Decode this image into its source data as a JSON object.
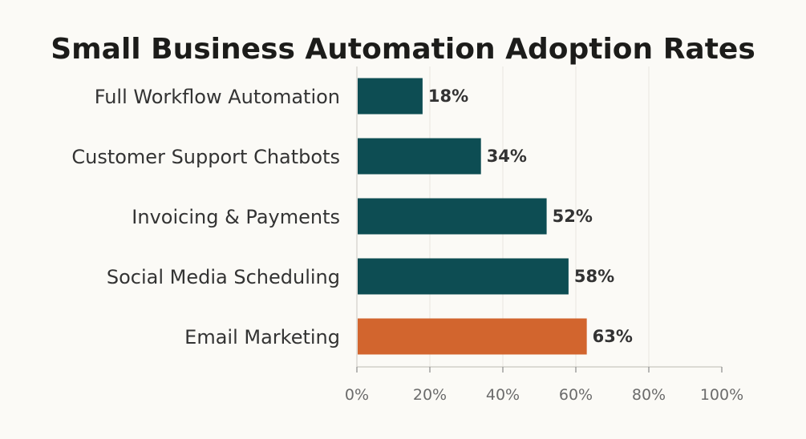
{
  "chart_data": {
    "type": "bar",
    "orientation": "horizontal",
    "title": "Small Business Automation Adoption Rates",
    "xlabel": "",
    "ylabel": "",
    "categories": [
      "Full Workflow Automation",
      "Customer Support Chatbots",
      "Invoicing & Payments",
      "Social Media Scheduling",
      "Email Marketing"
    ],
    "values": [
      18,
      34,
      52,
      58,
      63
    ],
    "value_labels": [
      "18%",
      "34%",
      "52%",
      "58%",
      "63%"
    ],
    "xlim": [
      0,
      100
    ],
    "x_ticks": [
      0,
      20,
      40,
      60,
      80,
      100
    ],
    "x_tick_labels": [
      "0%",
      "20%",
      "40%",
      "60%",
      "80%",
      "100%"
    ],
    "grid": true,
    "legend": "none",
    "colors": {
      "default_bar": "#0d4d53",
      "highlight_bar": "#d2652e",
      "highlight_category": "Email Marketing",
      "background": "#fbfaf6",
      "grid": "#e8e6e0",
      "axis": "#c8c6c0"
    }
  }
}
